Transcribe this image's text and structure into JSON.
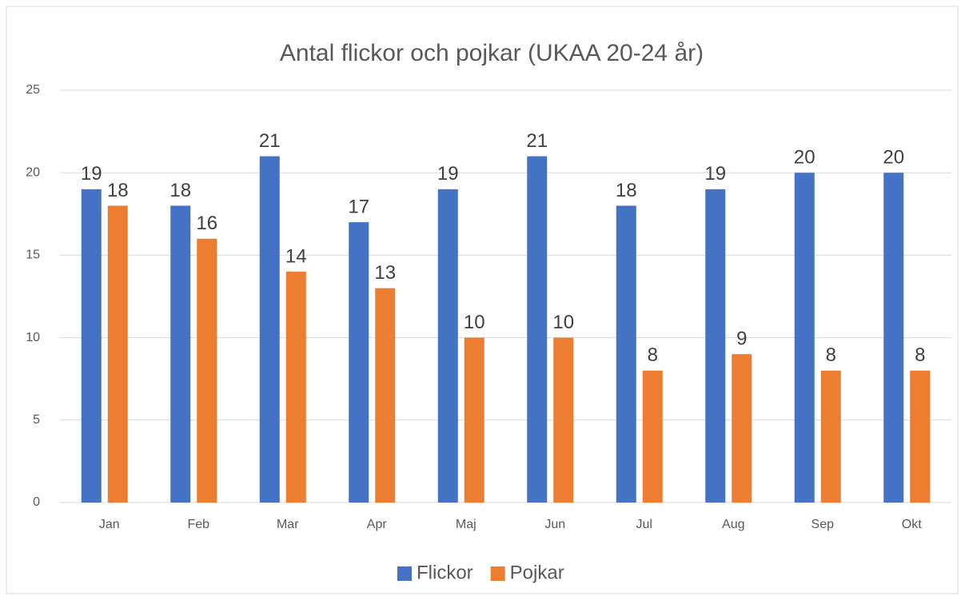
{
  "chart_data": {
    "type": "bar",
    "title": "Antal flickor och pojkar (UKAA 20-24 år)",
    "categories": [
      "Jan",
      "Feb",
      "Mar",
      "Apr",
      "Maj",
      "Jun",
      "Jul",
      "Aug",
      "Sep",
      "Okt"
    ],
    "series": [
      {
        "name": "Flickor",
        "color": "#4472c4",
        "values": [
          19,
          18,
          21,
          17,
          19,
          21,
          18,
          19,
          20,
          20
        ]
      },
      {
        "name": "Pojkar",
        "color": "#ed7d31",
        "values": [
          18,
          16,
          14,
          13,
          10,
          10,
          8,
          9,
          8,
          8
        ]
      }
    ],
    "ylim": [
      0,
      25
    ],
    "yticks": [
      0,
      5,
      10,
      15,
      20,
      25
    ],
    "grid": true,
    "legend": "bottom"
  }
}
